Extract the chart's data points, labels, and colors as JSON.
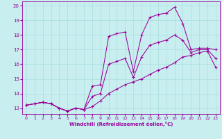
{
  "xlabel": "Windchill (Refroidissement éolien,°C)",
  "xlim": [
    -0.5,
    23.5
  ],
  "ylim": [
    12.6,
    20.3
  ],
  "xticks": [
    0,
    1,
    2,
    3,
    4,
    5,
    6,
    7,
    8,
    9,
    10,
    11,
    12,
    13,
    14,
    15,
    16,
    17,
    18,
    19,
    20,
    21,
    22,
    23
  ],
  "yticks": [
    13,
    14,
    15,
    16,
    17,
    18,
    19,
    20
  ],
  "background_color": "#c8eef0",
  "line_color": "#990099",
  "grid_color": "#aadddd",
  "lines": [
    {
      "x": [
        0,
        1,
        2,
        3,
        4,
        5,
        6,
        7,
        8,
        9,
        10,
        11,
        12,
        13,
        14,
        15,
        16,
        17,
        18,
        19,
        20,
        21,
        22,
        23
      ],
      "y": [
        13.2,
        13.3,
        13.4,
        13.3,
        13.0,
        12.8,
        13.0,
        12.9,
        13.1,
        13.5,
        14.0,
        14.3,
        14.6,
        14.8,
        15.0,
        15.3,
        15.6,
        15.8,
        16.1,
        16.5,
        16.6,
        16.8,
        16.9,
        15.8
      ]
    },
    {
      "x": [
        0,
        1,
        2,
        3,
        4,
        5,
        6,
        7,
        8,
        9,
        10,
        11,
        12,
        13,
        14,
        15,
        16,
        17,
        18,
        19,
        20,
        21,
        22,
        23
      ],
      "y": [
        13.2,
        13.3,
        13.4,
        13.3,
        13.0,
        12.8,
        13.0,
        12.9,
        14.5,
        14.6,
        17.9,
        18.1,
        18.2,
        15.5,
        18.0,
        19.2,
        19.4,
        19.5,
        19.9,
        18.8,
        17.0,
        17.1,
        17.1,
        17.0
      ]
    },
    {
      "x": [
        0,
        1,
        2,
        3,
        4,
        5,
        6,
        7,
        8,
        9,
        10,
        11,
        12,
        13,
        14,
        15,
        16,
        17,
        18,
        19,
        20,
        21,
        22,
        23
      ],
      "y": [
        13.2,
        13.3,
        13.4,
        13.3,
        13.0,
        12.8,
        13.0,
        12.9,
        13.8,
        14.0,
        16.0,
        16.2,
        16.4,
        15.1,
        16.5,
        17.3,
        17.5,
        17.65,
        18.0,
        17.65,
        16.8,
        17.0,
        17.0,
        16.4
      ]
    }
  ]
}
